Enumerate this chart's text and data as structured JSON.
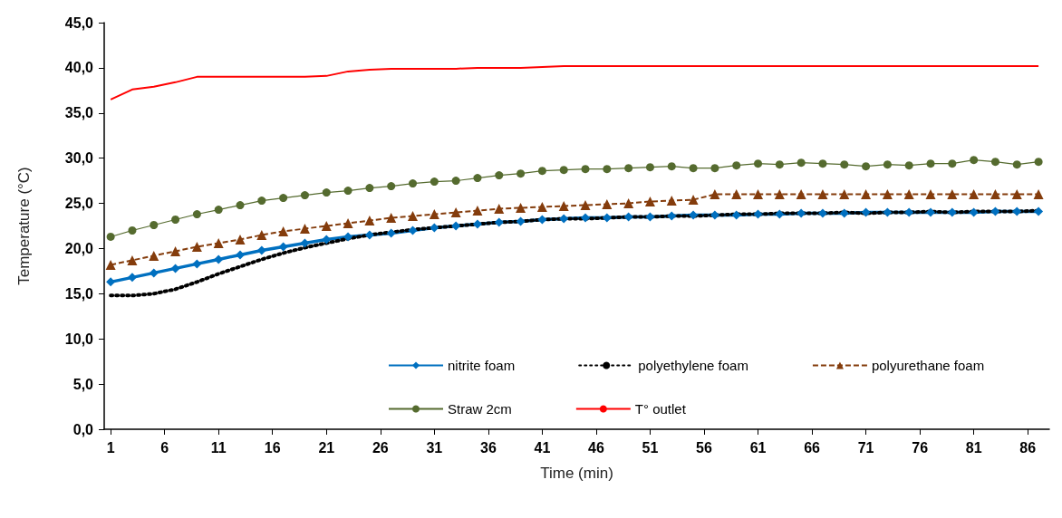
{
  "chart_data": {
    "type": "line",
    "xlabel": "Time (min)",
    "ylabel": "Temperature (°C)",
    "x": [
      1,
      3,
      5,
      7,
      9,
      11,
      13,
      15,
      17,
      19,
      21,
      23,
      25,
      27,
      29,
      31,
      33,
      35,
      37,
      39,
      41,
      43,
      45,
      47,
      49,
      51,
      53,
      55,
      57,
      59,
      61,
      63,
      65,
      67,
      69,
      71,
      73,
      75,
      77,
      79,
      81,
      83,
      85,
      87
    ],
    "xlim": [
      0.4,
      88
    ],
    "xticks": [
      1,
      6,
      11,
      16,
      21,
      26,
      31,
      36,
      41,
      46,
      51,
      56,
      61,
      66,
      71,
      76,
      81,
      86
    ],
    "ylim": [
      0,
      45
    ],
    "yticks": [
      {
        "value": 0,
        "label": "0,0"
      },
      {
        "value": 5,
        "label": "5,0"
      },
      {
        "value": 10,
        "label": "10,0"
      },
      {
        "value": 15,
        "label": "15,0"
      },
      {
        "value": 20,
        "label": "20,0"
      },
      {
        "value": 25,
        "label": "25,0"
      },
      {
        "value": 30,
        "label": "30,0"
      },
      {
        "value": 35,
        "label": "35,0"
      },
      {
        "value": 40,
        "label": "40,0"
      },
      {
        "value": 45,
        "label": "45,0"
      }
    ],
    "grid": false,
    "legend": "bottom right",
    "series": [
      {
        "name": "nitrite foam",
        "color": "#0070c0",
        "marker": "diamond",
        "line_style": "solid",
        "values": [
          16.3,
          16.8,
          17.3,
          17.8,
          18.3,
          18.8,
          19.3,
          19.8,
          20.2,
          20.6,
          21.0,
          21.3,
          21.5,
          21.7,
          22.0,
          22.3,
          22.5,
          22.7,
          22.9,
          23.0,
          23.2,
          23.3,
          23.4,
          23.4,
          23.5,
          23.5,
          23.6,
          23.7,
          23.7,
          23.7,
          23.8,
          23.8,
          23.9,
          23.9,
          23.9,
          24.0,
          24.0,
          24.0,
          24.0,
          24.0,
          24.0,
          24.1,
          24.1,
          24.1
        ]
      },
      {
        "name": "polyethylene foam",
        "color": "#000000",
        "marker": "none",
        "line_style": "dotted",
        "values": [
          14.8,
          14.8,
          15.0,
          15.5,
          16.3,
          17.2,
          18.0,
          18.8,
          19.5,
          20.1,
          20.6,
          21.1,
          21.5,
          21.8,
          22.1,
          22.3,
          22.5,
          22.7,
          22.9,
          23.0,
          23.2,
          23.3,
          23.3,
          23.4,
          23.5,
          23.5,
          23.6,
          23.6,
          23.7,
          23.8,
          23.8,
          23.9,
          23.9,
          23.9,
          24.0,
          23.9,
          24.0,
          24.0,
          24.1,
          24.0,
          24.1,
          24.1,
          24.1,
          24.2
        ]
      },
      {
        "name": "polyurethane foam",
        "color": "#843c0c",
        "marker": "triangle",
        "line_style": "dashed",
        "values": [
          18.2,
          18.7,
          19.2,
          19.7,
          20.2,
          20.6,
          21.0,
          21.5,
          21.9,
          22.2,
          22.5,
          22.8,
          23.1,
          23.4,
          23.6,
          23.8,
          24.0,
          24.2,
          24.4,
          24.5,
          24.6,
          24.7,
          24.8,
          24.9,
          25.0,
          25.2,
          25.3,
          25.4,
          26.0,
          26.0,
          26.0,
          26.0,
          26.0,
          26.0,
          26.0,
          26.0,
          26.0,
          26.0,
          26.0,
          26.0,
          26.0,
          26.0,
          26.0,
          26.0
        ]
      },
      {
        "name": "Straw 2cm",
        "color": "#556b2f",
        "marker": "circle",
        "line_style": "solid",
        "values": [
          21.3,
          22.0,
          22.6,
          23.2,
          23.8,
          24.3,
          24.8,
          25.3,
          25.6,
          25.9,
          26.2,
          26.4,
          26.7,
          26.9,
          27.2,
          27.4,
          27.5,
          27.8,
          28.1,
          28.3,
          28.6,
          28.7,
          28.8,
          28.8,
          28.9,
          29.0,
          29.1,
          28.9,
          28.9,
          29.2,
          29.4,
          29.3,
          29.5,
          29.4,
          29.3,
          29.1,
          29.3,
          29.2,
          29.4,
          29.4,
          29.8,
          29.6,
          29.3,
          29.6
        ]
      },
      {
        "name": "T° outlet",
        "color": "#ff0000",
        "marker": "none",
        "line_style": "solid",
        "values": [
          36.5,
          37.6,
          37.9,
          38.4,
          39.0,
          39.0,
          39.0,
          39.0,
          39.0,
          39.0,
          39.1,
          39.6,
          39.8,
          39.9,
          39.9,
          39.9,
          39.9,
          40.0,
          40.0,
          40.0,
          40.1,
          40.2,
          40.2,
          40.2,
          40.2,
          40.2,
          40.2,
          40.2,
          40.2,
          40.2,
          40.2,
          40.2,
          40.2,
          40.2,
          40.2,
          40.2,
          40.2,
          40.2,
          40.2,
          40.2,
          40.2,
          40.2,
          40.2,
          40.2
        ]
      }
    ]
  }
}
